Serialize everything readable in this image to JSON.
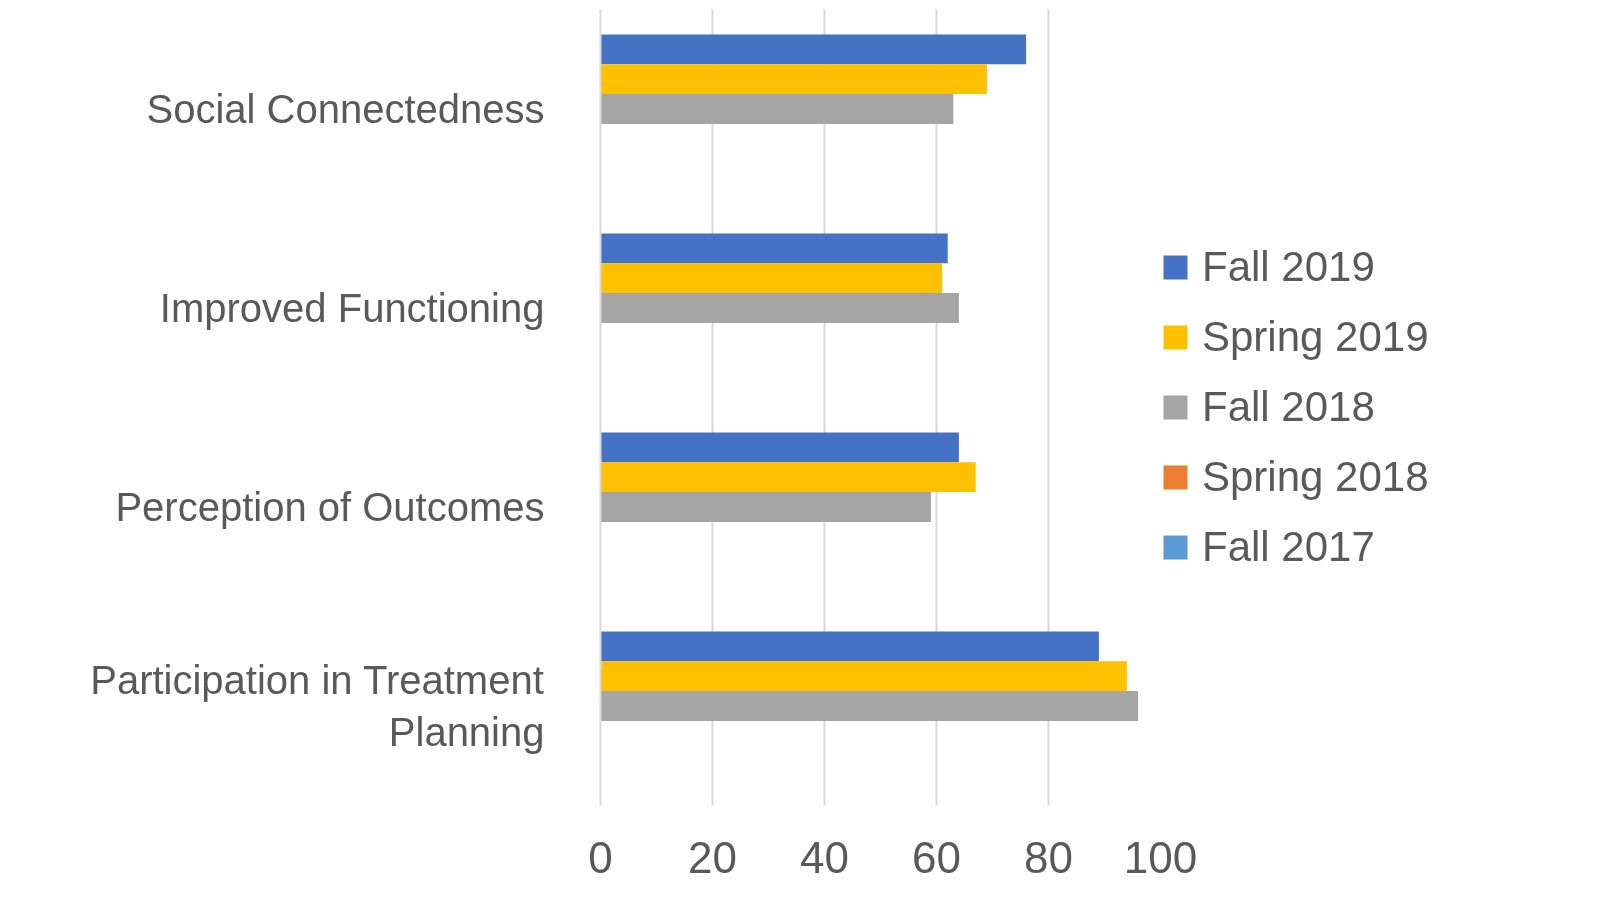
{
  "chart_data": {
    "type": "bar",
    "orientation": "horizontal",
    "categories": [
      "Social Connectedness",
      "Improved Functioning",
      "Perception of Outcomes",
      "Participation in Treatment Planning"
    ],
    "series": [
      {
        "name": "Fall 2019",
        "color": "#4472c4",
        "values": [
          76,
          62,
          64,
          89
        ]
      },
      {
        "name": "Spring 2019",
        "color": "#ffc000",
        "values": [
          69,
          61,
          67,
          94
        ]
      },
      {
        "name": "Fall 2018",
        "color": "#a5a5a5",
        "values": [
          63,
          64,
          59,
          96
        ]
      },
      {
        "name": "Spring 2018",
        "color": "#ed7d31",
        "values": [
          null,
          null,
          null,
          null
        ]
      },
      {
        "name": "Fall 2017",
        "color": "#5b9bd5",
        "values": [
          null,
          null,
          null,
          null
        ]
      }
    ],
    "xlim": [
      0,
      100
    ],
    "xticks": [
      0,
      20,
      40,
      60,
      80,
      100
    ],
    "grid": "x",
    "legend": "right"
  }
}
